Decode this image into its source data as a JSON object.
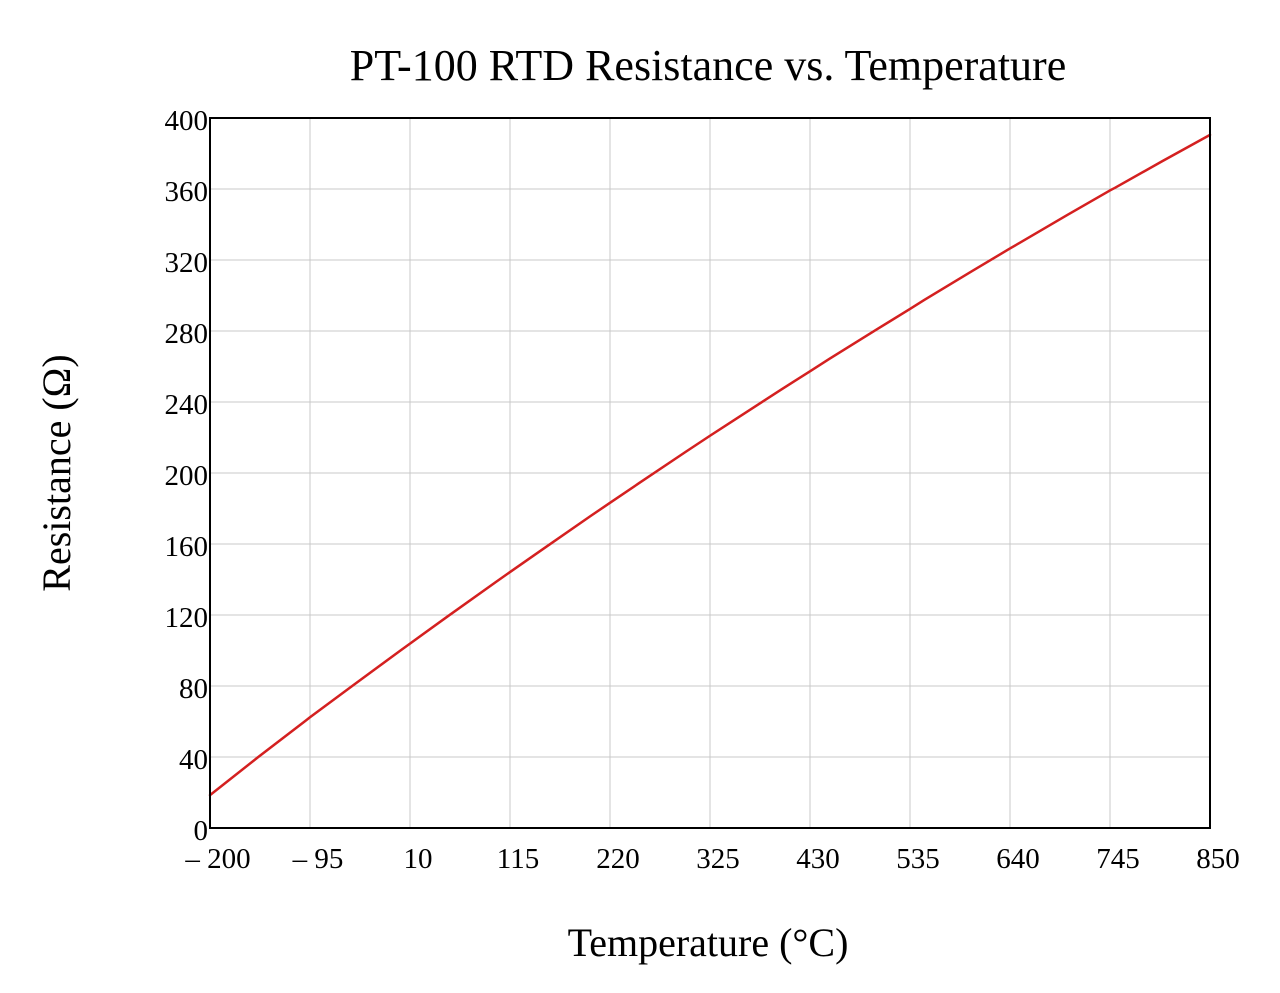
{
  "chart_data": {
    "type": "line",
    "title": "PT-100 RTD Resistance vs. Temperature",
    "xlabel": "Temperature (°C)",
    "ylabel": "Resistance (Ω)",
    "xlim": [
      -200,
      850
    ],
    "ylim": [
      0,
      400
    ],
    "x_ticks": [
      -200,
      -95,
      10,
      115,
      220,
      325,
      430,
      535,
      640,
      745,
      850
    ],
    "x_tick_labels": [
      "– 200",
      "– 95",
      "10",
      "115",
      "220",
      "325",
      "430",
      "535",
      "640",
      "745",
      "850"
    ],
    "y_ticks": [
      0,
      40,
      80,
      120,
      160,
      200,
      240,
      280,
      320,
      360,
      400
    ],
    "y_tick_labels": [
      "0",
      "40",
      "80",
      "120",
      "160",
      "200",
      "240",
      "280",
      "320",
      "360",
      "400"
    ],
    "grid": true,
    "legend": "none",
    "series": [
      {
        "color": "#d42020",
        "x": [
          -200,
          -150,
          -100,
          -95,
          -50,
          0,
          10,
          50,
          100,
          115,
          150,
          200,
          220,
          250,
          300,
          325,
          350,
          400,
          430,
          450,
          500,
          535,
          550,
          600,
          640,
          650,
          700,
          745,
          750,
          800,
          850
        ],
        "y": [
          18.5,
          39.7,
          60.3,
          62.4,
          80.3,
          100.0,
          103.9,
          119.4,
          138.5,
          144.2,
          157.3,
          175.9,
          183.2,
          194.1,
          212.1,
          221.0,
          229.7,
          247.1,
          257.3,
          264.2,
          280.9,
          292.4,
          297.5,
          313.7,
          326.5,
          329.6,
          345.3,
          359.2,
          360.6,
          375.7,
          390.5
        ]
      }
    ]
  }
}
